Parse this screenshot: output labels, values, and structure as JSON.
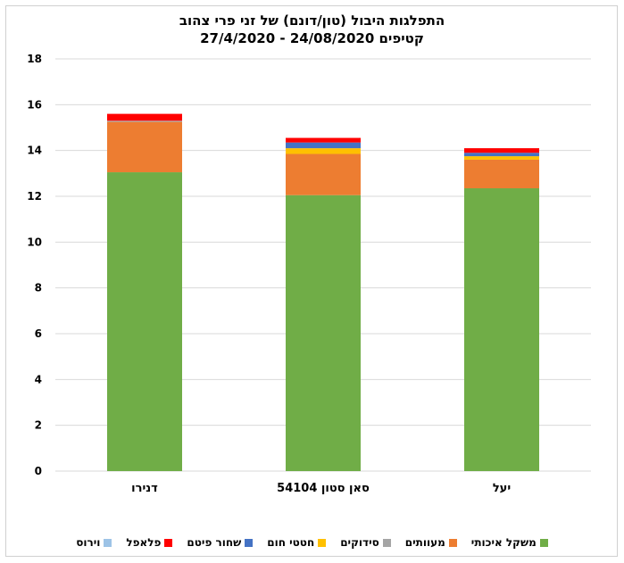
{
  "chart_data": {
    "type": "bar",
    "stacked": true,
    "title": "התפלגות היבול (טון/דונם) של זני פרי צהוב",
    "subtitle": "קטיפים 24/08/2020 - 27/4/2020",
    "categories": [
      "דנירו",
      "סאן סטון 54104",
      "יעל"
    ],
    "ylim": [
      0,
      18
    ],
    "yticks": [
      0,
      2,
      4,
      6,
      8,
      10,
      12,
      14,
      16,
      18
    ],
    "grid": true,
    "legend_position": "bottom",
    "series": [
      {
        "name": "משקל איכותי",
        "color": "#70ad47",
        "values": [
          13.05,
          12.05,
          12.35
        ]
      },
      {
        "name": "מעוותים",
        "color": "#ed7d31",
        "values": [
          2.2,
          1.8,
          1.25
        ]
      },
      {
        "name": "סידוקים",
        "color": "#a5a5a5",
        "values": [
          0.05,
          0.0,
          0.0
        ]
      },
      {
        "name": "חטטי חום",
        "color": "#ffc000",
        "values": [
          0.0,
          0.25,
          0.15
        ]
      },
      {
        "name": "שחור פיטם",
        "color": "#4472c4",
        "values": [
          0.0,
          0.25,
          0.15
        ]
      },
      {
        "name": "פלאפל",
        "color": "#ff0000",
        "values": [
          0.3,
          0.2,
          0.2
        ]
      },
      {
        "name": "וירוס",
        "color": "#9dc3e6",
        "values": [
          0.0,
          0.0,
          0.0
        ]
      }
    ]
  }
}
